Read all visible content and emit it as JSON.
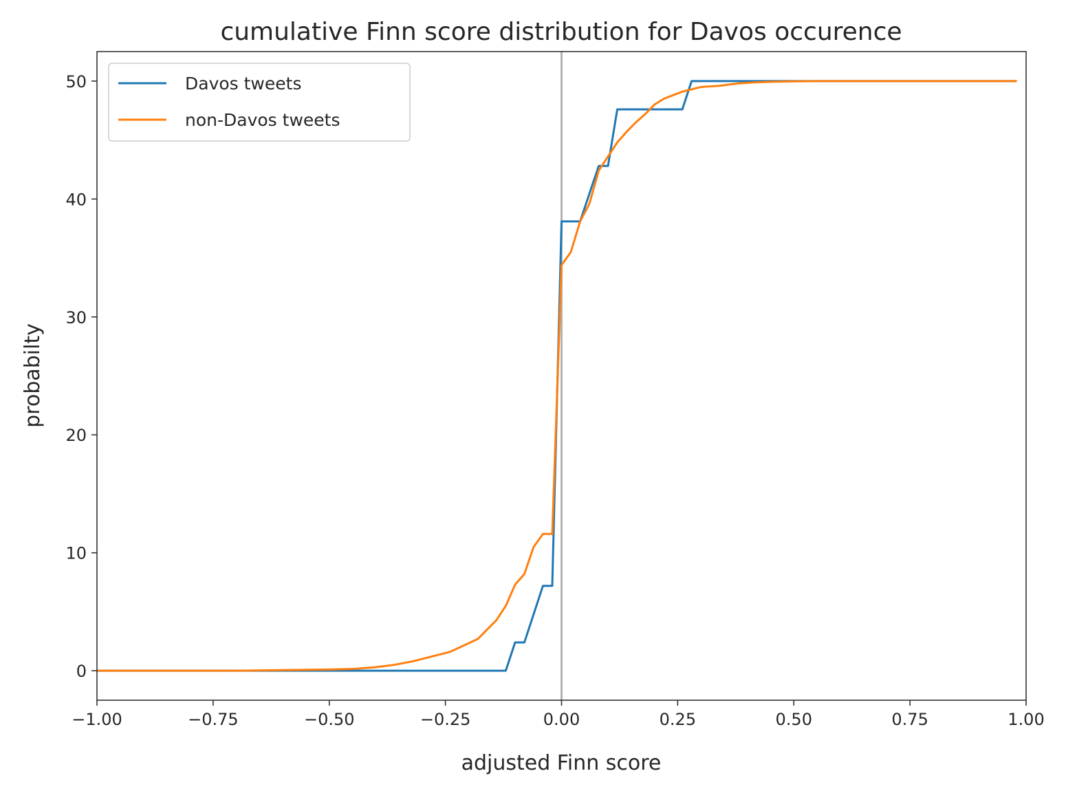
{
  "chart_data": {
    "type": "line",
    "title": "cumulative Finn score distribution for Davos occurence",
    "xlabel": "adjusted Finn score",
    "ylabel": "probabilty",
    "xlim": [
      -1.0,
      1.0
    ],
    "ylim": [
      -2.5,
      52.5
    ],
    "xticks": [
      -1.0,
      -0.75,
      -0.5,
      -0.25,
      0.0,
      0.25,
      0.5,
      0.75,
      1.0
    ],
    "xtick_labels": [
      "−1.00",
      "−0.75",
      "−0.50",
      "−0.25",
      "0.00",
      "0.25",
      "0.50",
      "0.75",
      "1.00"
    ],
    "yticks": [
      0,
      10,
      20,
      30,
      40,
      50
    ],
    "ytick_labels": [
      "0",
      "10",
      "20",
      "30",
      "40",
      "50"
    ],
    "grid": false,
    "legend_position": "top-left",
    "vline": {
      "x": 0.0,
      "color": "#b3b3b3"
    },
    "series": [
      {
        "name": "Davos tweets",
        "color": "#1f77b4",
        "x": [
          -1.0,
          -0.12,
          -0.1,
          -0.08,
          -0.04,
          -0.02,
          0.0,
          0.04,
          0.08,
          0.1,
          0.12,
          0.26,
          0.28,
          0.98
        ],
        "y": [
          0.0,
          0.0,
          2.4,
          2.4,
          7.2,
          7.2,
          38.1,
          38.1,
          42.8,
          42.8,
          47.6,
          47.6,
          50.0,
          50.0
        ]
      },
      {
        "name": "non-Davos tweets",
        "color": "#ff7f0e",
        "x": [
          -1.0,
          -0.7,
          -0.6,
          -0.5,
          -0.45,
          -0.4,
          -0.36,
          -0.32,
          -0.28,
          -0.24,
          -0.18,
          -0.14,
          -0.12,
          -0.1,
          -0.08,
          -0.06,
          -0.04,
          -0.02,
          0.0,
          0.02,
          0.04,
          0.06,
          0.08,
          0.1,
          0.12,
          0.14,
          0.16,
          0.18,
          0.2,
          0.22,
          0.24,
          0.26,
          0.28,
          0.3,
          0.34,
          0.38,
          0.42,
          0.46,
          0.55,
          0.7,
          0.98
        ],
        "y": [
          0.0,
          0.0,
          0.05,
          0.1,
          0.15,
          0.3,
          0.5,
          0.8,
          1.2,
          1.6,
          2.7,
          4.3,
          5.5,
          7.3,
          8.2,
          10.5,
          11.6,
          11.6,
          34.4,
          35.5,
          38.1,
          39.6,
          42.4,
          43.6,
          44.8,
          45.7,
          46.5,
          47.2,
          48.0,
          48.5,
          48.8,
          49.1,
          49.3,
          49.5,
          49.6,
          49.8,
          49.9,
          49.95,
          50.0,
          50.0,
          50.0
        ]
      }
    ]
  }
}
